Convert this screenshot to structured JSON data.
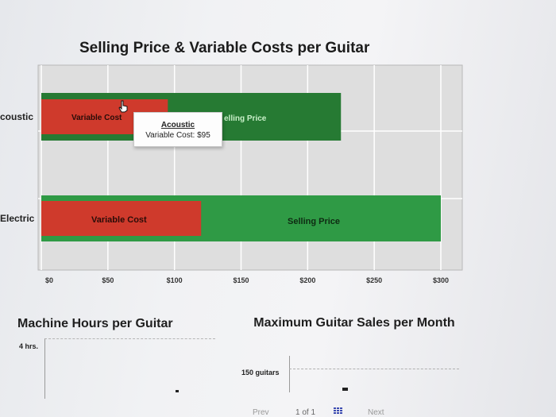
{
  "chart_data": {
    "type": "bar",
    "orientation": "horizontal",
    "title": "Selling Price & Variable Costs per Guitar",
    "categories": [
      "coustic",
      "Electric"
    ],
    "series": [
      {
        "name": "Selling Price",
        "values": [
          225,
          300
        ],
        "color": "#2e8b3a"
      },
      {
        "name": "Variable Cost",
        "values": [
          95,
          120
        ],
        "color": "#c8322b"
      }
    ],
    "bar_labels": {
      "variable": "Variable Cost",
      "selling": "Selling Price"
    },
    "bar_label_visible": [
      "Variable Cost",
      "elling Price"
    ],
    "x_ticks": [
      0,
      50,
      100,
      150,
      200,
      250,
      300
    ],
    "x_tick_labels": [
      "$0",
      "$50",
      "$100",
      "$150",
      "$200",
      "$250",
      "$300"
    ],
    "xlim": [
      0,
      300
    ],
    "grid": true,
    "legend": "none"
  },
  "tooltip": {
    "title": "Acoustic",
    "line": "Variable Cost: $95"
  },
  "machine_hours": {
    "title": "Machine Hours per Guitar",
    "label": "4 hrs."
  },
  "max_sales": {
    "title": "Maximum Guitar Sales per Month",
    "label": "150 guitars"
  },
  "footer": {
    "prev": "Prev",
    "page": "1 of 1",
    "next": "Next"
  },
  "icons": {
    "cursor": "hand-pointer-icon",
    "grid": "grid-icon"
  }
}
